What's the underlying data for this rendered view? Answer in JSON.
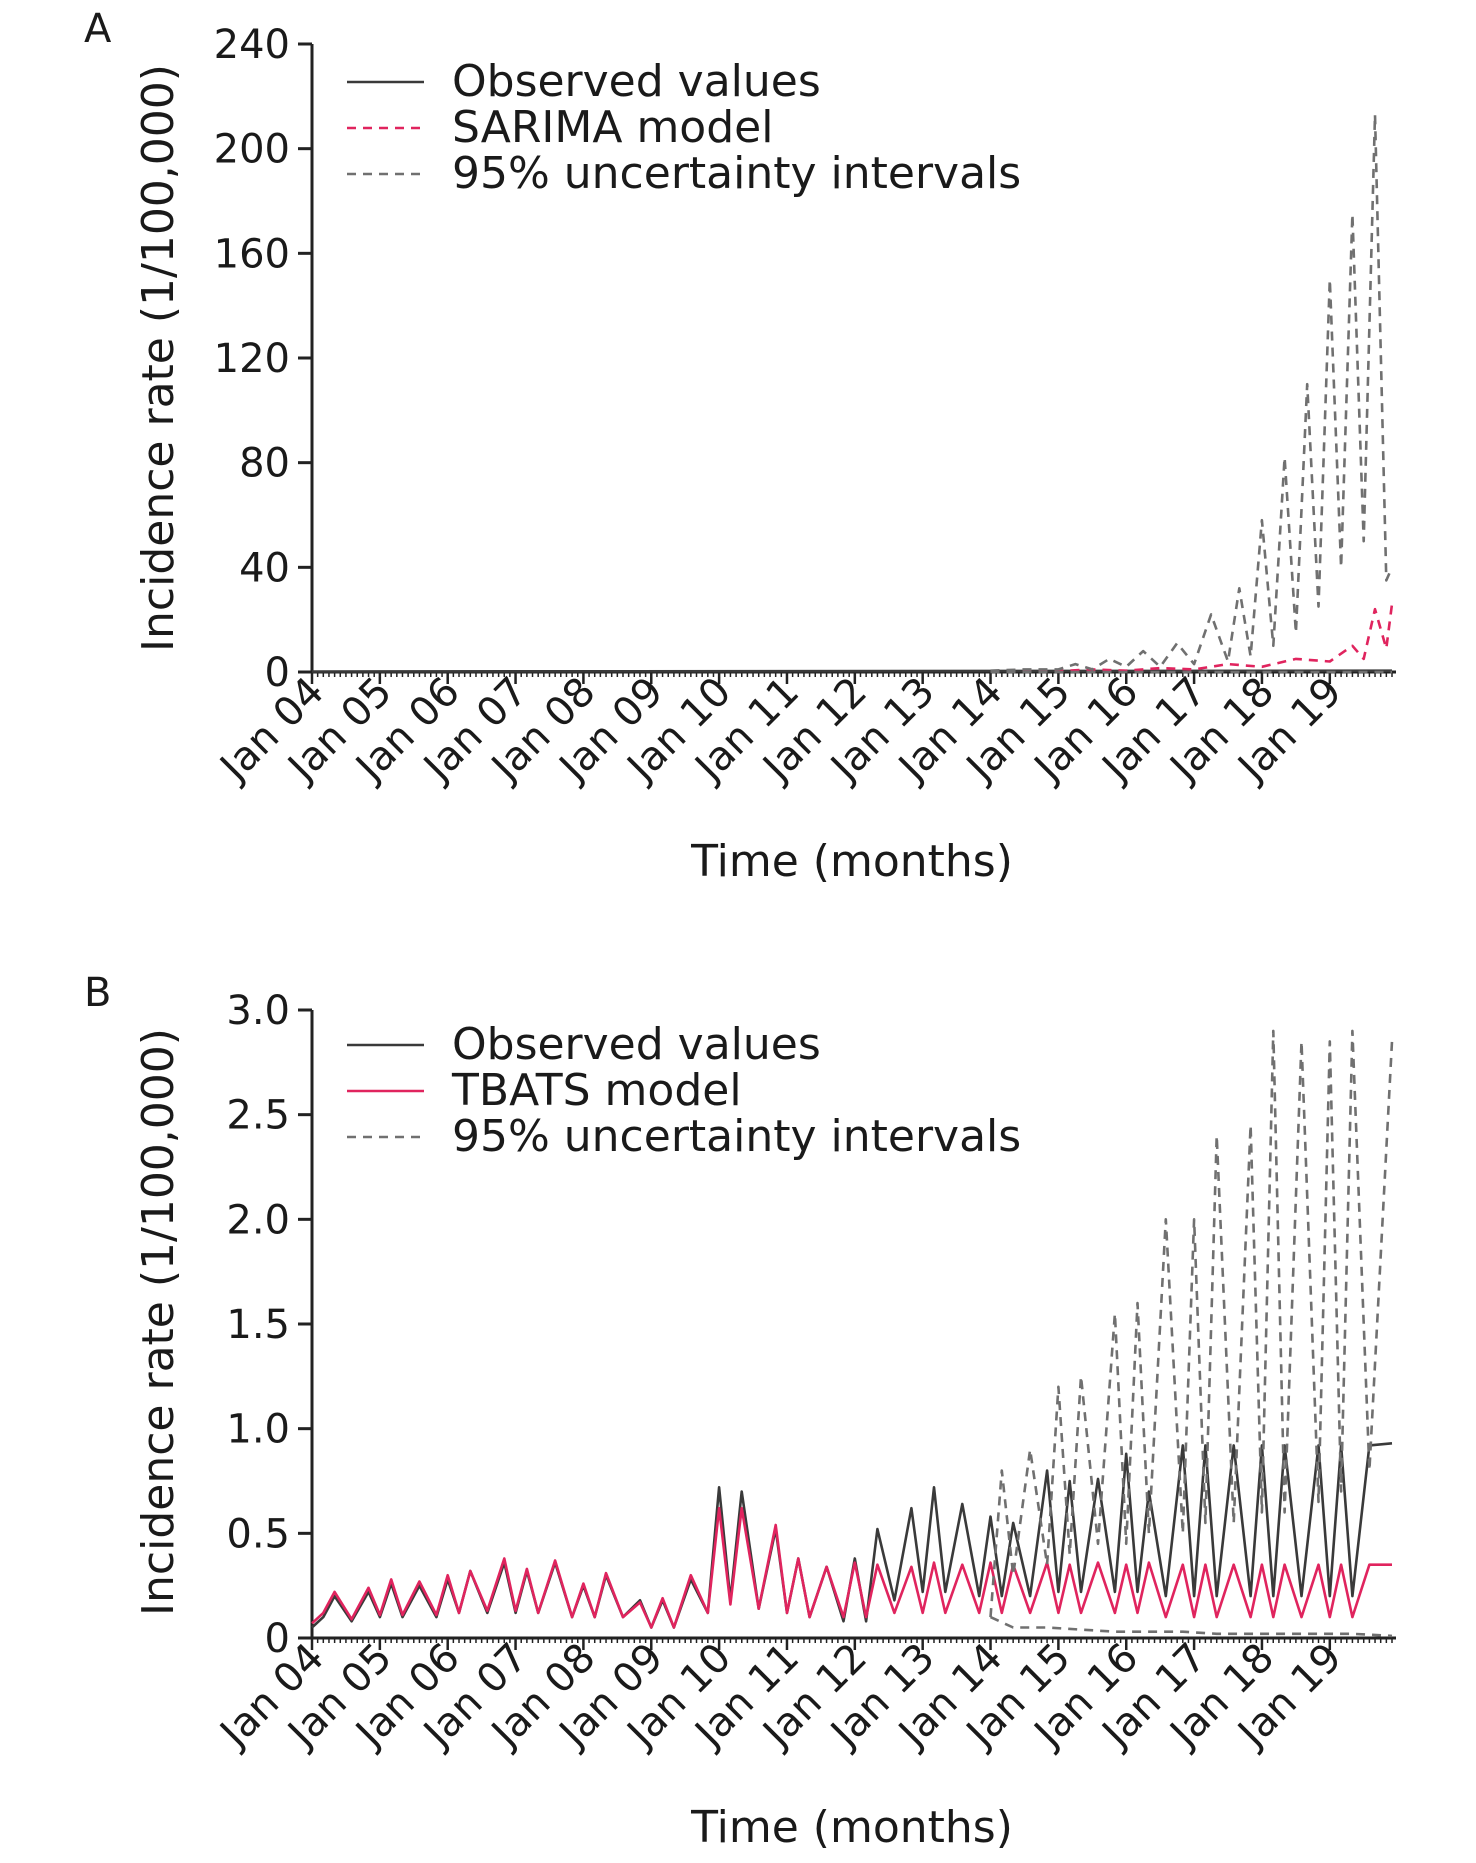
{
  "colors": {
    "observed": "#3a3a3a",
    "sarima": "#e0245e",
    "tbats": "#e0245e",
    "tbats_forecast": "#f25a22",
    "interval": "#707070",
    "observed_forecast": "#3b3f9e",
    "interval_early": "#1a8a8a"
  },
  "chart_data": [
    {
      "panel": "A",
      "type": "line",
      "xlabel": "Time (months)",
      "ylabel": "Incidence rate (1/100,000)",
      "ylim": [
        0,
        240
      ],
      "yticks": [
        0,
        40,
        80,
        120,
        160,
        200,
        240
      ],
      "xlim": [
        0,
        191
      ],
      "xticks": [
        "Jan 04",
        "Jan 05",
        "Jan 06",
        "Jan 07",
        "Jan 08",
        "Jan 09",
        "Jan 10",
        "Jan 11",
        "Jan 12",
        "Jan 13",
        "Jan 14",
        "Jan 15",
        "Jan 16",
        "Jan 17",
        "Jan 18",
        "Jan 19"
      ],
      "legend": [
        "Observed values",
        "SARIMA model",
        "95% uncertainty intervals"
      ],
      "legend_position": "top-left",
      "series": [
        {
          "name": "Observed values",
          "style": "solid",
          "color": "observed",
          "x": [
            0,
            191
          ],
          "values": [
            0.2,
            0.5
          ]
        },
        {
          "name": "SARIMA model",
          "style": "dashed",
          "color": "sarima",
          "x": [
            120,
            132,
            138,
            144,
            150,
            156,
            162,
            168,
            174,
            180,
            184,
            186,
            188,
            190,
            191
          ],
          "values": [
            0.3,
            0.3,
            1.0,
            0.5,
            1.5,
            1.0,
            3,
            2,
            5,
            4,
            10,
            5,
            24,
            9,
            26
          ]
        },
        {
          "name": "95% uncertainty intervals",
          "style": "dashed",
          "color": "interval",
          "x": [
            120,
            126,
            132,
            135,
            138,
            141,
            144,
            147,
            150,
            153,
            156,
            159,
            162,
            164,
            166,
            168,
            170,
            172,
            174,
            176,
            178,
            180,
            182,
            184,
            186,
            188,
            190,
            191
          ],
          "values": [
            0.5,
            1,
            1,
            3,
            1,
            5,
            2,
            8,
            2,
            11,
            3,
            22,
            4,
            32,
            6,
            58,
            10,
            82,
            15,
            110,
            25,
            150,
            40,
            175,
            50,
            213,
            35,
            40
          ]
        },
        {
          "name": "95% uncertainty intervals",
          "style": "dashed",
          "color": "interval",
          "x": [
            120,
            191
          ],
          "values": [
            0.0,
            0.0
          ]
        }
      ]
    },
    {
      "panel": "B",
      "type": "line",
      "xlabel": "Time (months)",
      "ylabel": "Incidence rate (1/100,000)",
      "ylim": [
        0,
        3.0
      ],
      "yticks": [
        "0",
        "0.5",
        "1.0",
        "1.5",
        "2.0",
        "2.5",
        "3.0"
      ],
      "ytick_values": [
        0,
        0.5,
        1.0,
        1.5,
        2.0,
        2.5,
        3.0
      ],
      "xlim": [
        0,
        191
      ],
      "xticks": [
        "Jan 04",
        "Jan 05",
        "Jan 06",
        "Jan 07",
        "Jan 08",
        "Jan 09",
        "Jan 10",
        "Jan 11",
        "Jan 12",
        "Jan 13",
        "Jan 14",
        "Jan 15",
        "Jan 16",
        "Jan 17",
        "Jan 18",
        "Jan 19"
      ],
      "legend": [
        "Observed values",
        "TBATS model",
        "95% uncertainty intervals"
      ],
      "legend_position": "top-left",
      "series": [
        {
          "name": "Observed values",
          "style": "solid",
          "color": "observed",
          "x": [
            0,
            2,
            4,
            7,
            10,
            12,
            14,
            16,
            19,
            22,
            24,
            26,
            28,
            31,
            34,
            36,
            38,
            40,
            43,
            46,
            48,
            50,
            52,
            55,
            58,
            60,
            62,
            64,
            67,
            70,
            72,
            74,
            76,
            79,
            82,
            84,
            86,
            88,
            91,
            94,
            96,
            98,
            100,
            103,
            106,
            108,
            110,
            112,
            115,
            118,
            120,
            122,
            124,
            127,
            130,
            132,
            134,
            136,
            139,
            142,
            144,
            146,
            148,
            151,
            154,
            156,
            158,
            160,
            163,
            166,
            168,
            170,
            172,
            175,
            178,
            180,
            182,
            184,
            187,
            191
          ],
          "values": [
            0.05,
            0.1,
            0.2,
            0.08,
            0.22,
            0.1,
            0.26,
            0.1,
            0.25,
            0.1,
            0.28,
            0.12,
            0.32,
            0.12,
            0.36,
            0.12,
            0.32,
            0.12,
            0.36,
            0.1,
            0.25,
            0.1,
            0.3,
            0.1,
            0.18,
            0.05,
            0.18,
            0.05,
            0.28,
            0.12,
            0.72,
            0.18,
            0.7,
            0.14,
            0.52,
            0.12,
            0.38,
            0.1,
            0.34,
            0.08,
            0.38,
            0.08,
            0.52,
            0.18,
            0.62,
            0.22,
            0.72,
            0.22,
            0.64,
            0.2,
            0.58,
            0.2,
            0.55,
            0.2,
            0.8,
            0.22,
            0.75,
            0.22,
            0.76,
            0.22,
            0.88,
            0.22,
            0.7,
            0.2,
            0.92,
            0.2,
            0.92,
            0.2,
            0.92,
            0.2,
            0.92,
            0.2,
            0.92,
            0.2,
            0.92,
            0.2,
            0.92,
            0.2,
            0.92,
            0.93
          ]
        },
        {
          "name": "TBATS model",
          "style": "solid",
          "color": "tbats",
          "x": [
            0,
            2,
            4,
            7,
            10,
            12,
            14,
            16,
            19,
            22,
            24,
            26,
            28,
            31,
            34,
            36,
            38,
            40,
            43,
            46,
            48,
            50,
            52,
            55,
            58,
            60,
            62,
            64,
            67,
            70,
            72,
            74,
            76,
            79,
            82,
            84,
            86,
            88,
            91,
            94,
            96,
            98,
            100,
            103,
            106,
            108,
            110,
            112,
            115,
            118,
            120,
            122,
            124,
            127,
            130,
            132,
            134,
            136,
            139,
            142,
            144,
            146,
            148,
            151,
            154,
            156,
            158,
            160,
            163,
            166,
            168,
            170,
            172,
            175,
            178,
            180,
            182,
            184,
            187,
            191
          ],
          "values": [
            0.07,
            0.12,
            0.22,
            0.09,
            0.24,
            0.11,
            0.28,
            0.11,
            0.27,
            0.11,
            0.3,
            0.12,
            0.32,
            0.13,
            0.38,
            0.13,
            0.33,
            0.12,
            0.37,
            0.1,
            0.26,
            0.1,
            0.31,
            0.1,
            0.17,
            0.05,
            0.19,
            0.05,
            0.3,
            0.12,
            0.62,
            0.16,
            0.62,
            0.14,
            0.54,
            0.12,
            0.38,
            0.1,
            0.34,
            0.1,
            0.36,
            0.1,
            0.35,
            0.12,
            0.34,
            0.12,
            0.36,
            0.12,
            0.35,
            0.12,
            0.36,
            0.12,
            0.35,
            0.12,
            0.36,
            0.12,
            0.35,
            0.12,
            0.36,
            0.12,
            0.35,
            0.12,
            0.36,
            0.1,
            0.35,
            0.1,
            0.35,
            0.1,
            0.35,
            0.1,
            0.35,
            0.1,
            0.35,
            0.1,
            0.35,
            0.1,
            0.35,
            0.1,
            0.35,
            0.35
          ]
        },
        {
          "name": "95% uncertainty intervals",
          "style": "dashed",
          "color": "interval",
          "x": [
            120,
            122,
            124,
            127,
            130,
            132,
            134,
            136,
            139,
            142,
            144,
            146,
            148,
            151,
            154,
            156,
            158,
            160,
            163,
            166,
            168,
            170,
            172,
            175,
            178,
            180,
            182,
            184,
            187,
            191
          ],
          "values": [
            0.1,
            0.8,
            0.3,
            0.9,
            0.35,
            1.2,
            0.4,
            1.25,
            0.45,
            1.55,
            0.45,
            1.6,
            0.5,
            2.0,
            0.5,
            2.0,
            0.55,
            2.4,
            0.55,
            2.45,
            0.6,
            2.9,
            0.6,
            2.85,
            0.65,
            2.85,
            0.7,
            2.9,
            0.8,
            2.85
          ]
        },
        {
          "name": "95% uncertainty intervals",
          "style": "dashed",
          "color": "interval",
          "x": [
            120,
            124,
            130,
            136,
            142,
            148,
            154,
            160,
            166,
            172,
            178,
            184,
            191
          ],
          "values": [
            0.1,
            0.05,
            0.05,
            0.04,
            0.03,
            0.03,
            0.03,
            0.02,
            0.02,
            0.02,
            0.02,
            0.02,
            0.01
          ]
        }
      ]
    }
  ]
}
